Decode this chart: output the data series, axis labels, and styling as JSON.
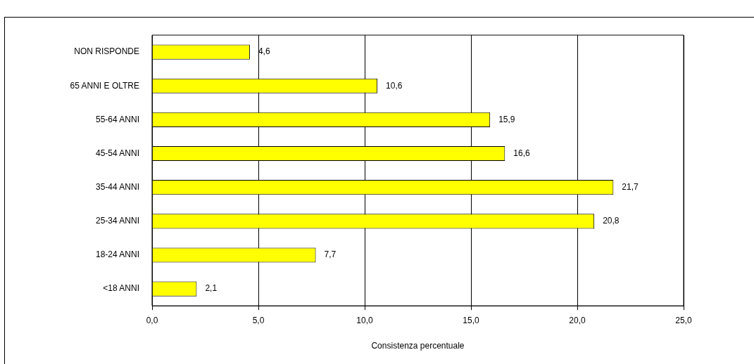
{
  "chart_data": {
    "type": "bar",
    "orientation": "horizontal",
    "xlabel": "Consistenza percentuale",
    "categories": [
      "NON RISPONDE",
      "65 ANNI E OLTRE",
      "55-64 ANNI",
      "45-54 ANNI",
      "35-44 ANNI",
      "25-34 ANNI",
      "18-24 ANNI",
      "<18 ANNI"
    ],
    "values": [
      4.6,
      10.6,
      15.9,
      16.6,
      21.7,
      20.8,
      7.7,
      2.1
    ],
    "value_labels": [
      "4,6",
      "10,6",
      "15,9",
      "16,6",
      "21,7",
      "20,8",
      "7,7",
      "2,1"
    ],
    "color": "#ffff00",
    "xlim": [
      0,
      25
    ],
    "xticks": [
      {
        "value": 0,
        "label": "0,0"
      },
      {
        "value": 5,
        "label": "5,0"
      },
      {
        "value": 10,
        "label": "10,0"
      },
      {
        "value": 15,
        "label": "15,0"
      },
      {
        "value": 20,
        "label": "20,0"
      },
      {
        "value": 25,
        "label": "25,0"
      }
    ],
    "grid": "x",
    "legend": false
  }
}
